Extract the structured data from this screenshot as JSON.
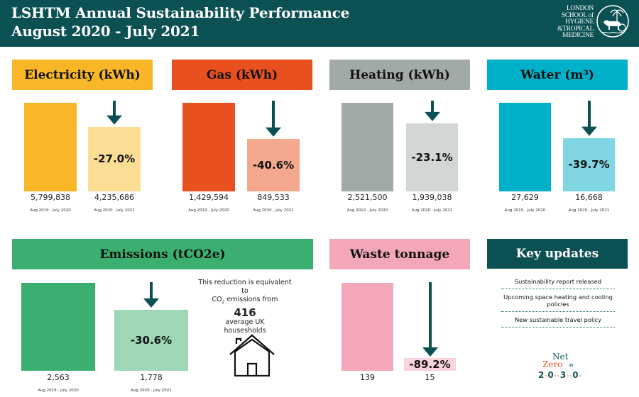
{
  "header": {
    "title_line1": "LSHTM Annual Sustainability Performance",
    "title_line2": "August 2020 - July 2021",
    "logo": {
      "line1": "LONDON",
      "line2": "SCHOOL of",
      "line3": "HYGIENE",
      "line4": "&TROPICAL",
      "line5": "MEDICINE",
      "emblem_icon": "horse-and-palm-emblem-icon"
    }
  },
  "colors": {
    "header_bg": "#0b5053",
    "arrow": "#0b5053",
    "electricity": "#f9b727",
    "electricity_light": "#fcdd94",
    "gas": "#e8501f",
    "gas_light": "#f4a98e",
    "heating": "#a1aaa7",
    "heating_light": "#d2d7d6",
    "water": "#00afc8",
    "water_light": "#80d6e2",
    "emissions": "#3baf6f",
    "emissions_light": "#9dd7b5",
    "waste": "#f4a7b8",
    "waste_light": "#fad3dc"
  },
  "chart_data": [
    {
      "type": "bar",
      "title": "Electricity (kWh)",
      "categories": [
        "Aug 2019 - July 2020",
        "Aug 2020 - July 2021"
      ],
      "values": [
        5799838,
        4235686
      ],
      "value_labels": [
        "5,799,838",
        "4,235,686"
      ],
      "change_label": "-27.0%"
    },
    {
      "type": "bar",
      "title": "Gas (kWh)",
      "categories": [
        "Aug 2019 - July 2020",
        "Aug 2020 - July 2021"
      ],
      "values": [
        1429594,
        849533
      ],
      "value_labels": [
        "1,429,594",
        "849,533"
      ],
      "change_label": "-40.6%"
    },
    {
      "type": "bar",
      "title": "Heating (kWh)",
      "categories": [
        "Aug 2019 - July 2020",
        "Aug 2020 - July 2021"
      ],
      "values": [
        2521500,
        1939038
      ],
      "value_labels": [
        "2,521,500",
        "1,939,038"
      ],
      "change_label": "-23.1%"
    },
    {
      "type": "bar",
      "title": "Water (m³)",
      "categories": [
        "Aug 2019 - July 2020",
        "Aug 2020 - July 2021"
      ],
      "values": [
        27629,
        16668
      ],
      "value_labels": [
        "27,629",
        "16,668"
      ],
      "change_label": "-39.7%"
    },
    {
      "type": "bar",
      "title": "Emissions (tCO2e)",
      "categories": [
        "Aug 2019 - July 2020",
        "Aug 2020 - July 2021"
      ],
      "values": [
        2563,
        1778
      ],
      "value_labels": [
        "2,563",
        "1,778"
      ],
      "change_label": "-30.6%"
    },
    {
      "type": "bar",
      "title": "Waste tonnage",
      "categories": [
        "",
        ""
      ],
      "values": [
        139,
        15
      ],
      "value_labels": [
        "139",
        "15"
      ],
      "change_label": "-89.2%"
    }
  ],
  "emissions_equivalent": {
    "line1": "This reduction is equivalent to",
    "line2_prefix": "CO",
    "line2_sub": "2",
    "line2_suffix": " emissions from",
    "number": "416",
    "line3": "average UK",
    "line4": "housesholds",
    "icon": "house-icon"
  },
  "key_updates": {
    "title": "Key updates",
    "items": [
      "Sustainability report released",
      "Upcoming space heating and cooling policies",
      "New sustainable travel policy"
    ]
  },
  "net_zero_logo": {
    "net": "Net",
    "zero": "Zero",
    "by": "BY",
    "year_digits": [
      "2",
      "0",
      "3",
      "0"
    ]
  }
}
